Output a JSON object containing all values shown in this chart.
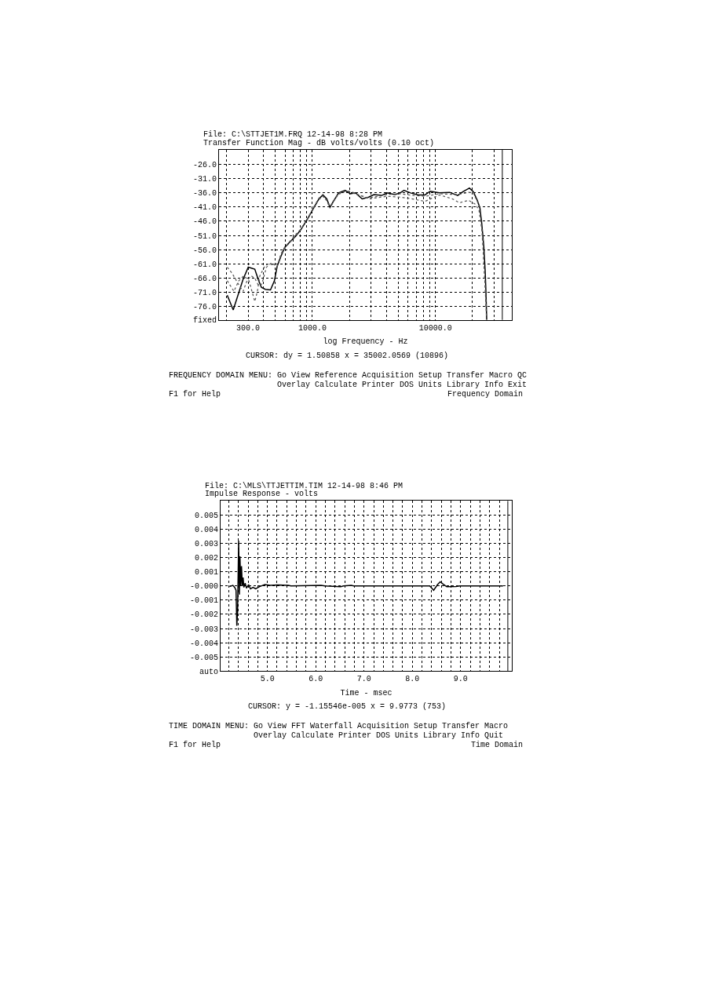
{
  "chart_data": [
    {
      "type": "line",
      "title": "File: C:\\STTJET1M.FRQ 12-14-98 8:28 PM",
      "subtitle": "Transfer Function Mag - dB volts/volts (0.10 oct)",
      "xlabel": "log Frequency - Hz",
      "log": "x",
      "grid": true,
      "xlim": [
        174,
        41800
      ],
      "xticks": [
        {
          "value": 200,
          "label": null
        },
        {
          "value": 300,
          "label": "300.0"
        },
        {
          "value": 400,
          "label": null
        },
        {
          "value": 500,
          "label": null
        },
        {
          "value": 600,
          "label": null
        },
        {
          "value": 700,
          "label": null
        },
        {
          "value": 800,
          "label": null
        },
        {
          "value": 900,
          "label": null
        },
        {
          "value": 1000,
          "label": "1000.0"
        },
        {
          "value": 2000,
          "label": null
        },
        {
          "value": 3000,
          "label": null
        },
        {
          "value": 4000,
          "label": null
        },
        {
          "value": 5000,
          "label": null
        },
        {
          "value": 6000,
          "label": null
        },
        {
          "value": 7000,
          "label": null
        },
        {
          "value": 8000,
          "label": null
        },
        {
          "value": 9000,
          "label": null
        },
        {
          "value": 10000,
          "label": "10000.0"
        },
        {
          "value": 20000,
          "label": null
        },
        {
          "value": 30000,
          "label": null
        }
      ],
      "ylim": [
        -80.8,
        -20.8
      ],
      "yticks": [
        {
          "value": -26,
          "label": "-26.0"
        },
        {
          "value": -31,
          "label": "-31.0"
        },
        {
          "value": -36,
          "label": "-36.0"
        },
        {
          "value": -41,
          "label": "-41.0"
        },
        {
          "value": -46,
          "label": "-46.0"
        },
        {
          "value": -51,
          "label": "-51.0"
        },
        {
          "value": -56,
          "label": "-56.0"
        },
        {
          "value": -61,
          "label": "-61.0"
        },
        {
          "value": -66,
          "label": "-66.0"
        },
        {
          "value": -71,
          "label": "-71.0"
        },
        {
          "value": -76,
          "label": "-76.0"
        },
        {
          "value": -80.8,
          "label": "fixed"
        }
      ],
      "series": [
        {
          "color": "#000000",
          "line_style": "solid",
          "x": [
            203,
            227,
            273,
            301,
            340,
            366,
            385,
            414,
            456,
            491,
            516,
            555,
            598,
            659,
            727,
            802,
            907,
            1025,
            1130,
            1216,
            1309,
            1389,
            1480,
            1632,
            1845,
            2035,
            2244,
            2537,
            2868,
            3162,
            3663,
            4040,
            4679,
            5163,
            5555,
            6281,
            7271,
            8220,
            9067,
            10763,
            13092,
            15165,
            16730,
            18913,
            20347,
            21895,
            23000,
            23810,
            24750,
            25370,
            25740,
            26120
          ],
          "values": [
            -72.1,
            -77.3,
            -66.5,
            -62.2,
            -62.9,
            -67,
            -69.3,
            -70,
            -70.2,
            -67,
            -62,
            -58.3,
            -55.1,
            -53.2,
            -51.4,
            -49.1,
            -45.4,
            -41.3,
            -38.1,
            -36.7,
            -38.1,
            -41.1,
            -39,
            -36,
            -35.1,
            -36.3,
            -36,
            -38.1,
            -37.5,
            -36.6,
            -36.9,
            -36,
            -36.6,
            -36,
            -35.1,
            -36,
            -36.7,
            -36.7,
            -35.4,
            -36,
            -35.8,
            -36.9,
            -35.6,
            -34.3,
            -35.6,
            -38.6,
            -41.3,
            -46.8,
            -55.1,
            -63.3,
            -70.7,
            -80.8
          ]
        },
        {
          "color": "#555555",
          "line_style": "dotted",
          "x": [
            203,
            222,
            252,
            273,
            294,
            317,
            340,
            366,
            388,
            423,
            465,
            516,
            555,
            598,
            659,
            727,
            802,
            907,
            1025,
            1130,
            1216,
            1309,
            1389,
            1480,
            1632,
            1845,
            2035,
            2244,
            2868,
            4040,
            5163,
            6281,
            8220,
            10763,
            13766,
            15680,
            18616,
            21170,
            22620,
            23810,
            24480,
            25220,
            25990
          ],
          "values": [
            -62.2,
            -64.3,
            -68.4,
            -70.7,
            -67,
            -65.2,
            -66.1,
            -68.8,
            -68.1,
            -62.2,
            -60.6,
            -62,
            -57.5,
            -55,
            -53,
            -50.8,
            -48.8,
            -45.2,
            -41.2,
            -38.3,
            -37.2,
            -38.5,
            -40.8,
            -38.8,
            -36.5,
            -35.5,
            -35.4,
            -36.2,
            -38.1,
            -37.2,
            -37.5,
            -38,
            -39,
            -36.7,
            -38.1,
            -39.5,
            -38.6,
            -40,
            -42.2,
            -48.7,
            -56.9,
            -67,
            -79.9
          ]
        },
        {
          "color": "#555555",
          "line_style": "dotted",
          "x": [
            203,
            230,
            252,
            277,
            305,
            340,
            357,
            374,
            414,
            447,
            491,
            533,
            555,
            598,
            659,
            727,
            802,
            907,
            1025,
            1130,
            1216,
            1309,
            1389,
            1480,
            1632,
            1845,
            2035,
            2244,
            2868,
            4040,
            5163,
            6281,
            8220,
            10763,
            15165,
            18616,
            20347,
            22620,
            24180,
            25000,
            25860
          ],
          "values": [
            -67,
            -70.7,
            -67,
            -65.2,
            -67,
            -74.3,
            -70.7,
            -65.2,
            -61.5,
            -61,
            -61.5,
            -60.6,
            -57.8,
            -55.3,
            -53.4,
            -51.2,
            -49,
            -45.3,
            -41,
            -37.8,
            -37,
            -38.8,
            -41.4,
            -39.2,
            -36.2,
            -35.3,
            -35.8,
            -36.4,
            -37.8,
            -36.6,
            -36.3,
            -36.8,
            -37.2,
            -36.3,
            -36.6,
            -35.8,
            -36,
            -40.4,
            -50.5,
            -63.3,
            -76.2
          ]
        }
      ],
      "ref_lines": [
        {
          "axis": "x",
          "value": 35002.0569,
          "color": "#000000",
          "line_style": "solid"
        }
      ],
      "annotations": [
        "CURSOR: dy = 1.50858 x = 35002.0569 (10896)",
        "FREQUENCY DOMAIN MENU:",
        "Go View Reference Acquisition Setup Transfer Macro QC",
        "Overlay Calculate Printer DOS Units Library Info Exit",
        "F1 for Help",
        "Frequency Domain"
      ]
    },
    {
      "type": "line",
      "title": "File: C:\\MLS\\TTJETTIM.TIM 12-14-98 8:46 PM",
      "subtitle": "Impulse Response - volts",
      "xlabel": "Time - msec",
      "grid": true,
      "xlim": [
        4.03,
        10.06
      ],
      "xticks": [
        {
          "value": 4.2,
          "label": null
        },
        {
          "value": 4.4,
          "label": null
        },
        {
          "value": 4.6,
          "label": null
        },
        {
          "value": 4.8,
          "label": null
        },
        {
          "value": 5.0,
          "label": "5.0"
        },
        {
          "value": 5.2,
          "label": null
        },
        {
          "value": 5.4,
          "label": null
        },
        {
          "value": 5.6,
          "label": null
        },
        {
          "value": 5.8,
          "label": null
        },
        {
          "value": 6.0,
          "label": "6.0"
        },
        {
          "value": 6.2,
          "label": null
        },
        {
          "value": 6.4,
          "label": null
        },
        {
          "value": 6.6,
          "label": null
        },
        {
          "value": 6.8,
          "label": null
        },
        {
          "value": 7.0,
          "label": "7.0"
        },
        {
          "value": 7.2,
          "label": null
        },
        {
          "value": 7.4,
          "label": null
        },
        {
          "value": 7.6,
          "label": null
        },
        {
          "value": 7.8,
          "label": null
        },
        {
          "value": 8.0,
          "label": "8.0"
        },
        {
          "value": 8.2,
          "label": null
        },
        {
          "value": 8.4,
          "label": null
        },
        {
          "value": 8.6,
          "label": null
        },
        {
          "value": 8.8,
          "label": null
        },
        {
          "value": 9.0,
          "label": "9.0"
        },
        {
          "value": 9.2,
          "label": null
        },
        {
          "value": 9.4,
          "label": null
        },
        {
          "value": 9.6,
          "label": null
        },
        {
          "value": 9.8,
          "label": null
        }
      ],
      "ylim": [
        -0.006,
        0.006
      ],
      "yticks": [
        0.005,
        0.004,
        0.003,
        0.002,
        0.001,
        {
          "value": 0,
          "label": "-0.000"
        },
        -0.001,
        -0.002,
        -0.003,
        -0.004,
        -0.005,
        {
          "value": -0.006,
          "label": "auto"
        }
      ],
      "series": [
        {
          "color": "#000000",
          "line_style": "solid",
          "x": [
            4.214,
            4.285,
            4.322,
            4.35,
            4.366,
            4.382,
            4.404,
            4.42,
            4.431,
            4.447,
            4.463,
            4.48,
            4.496,
            4.512,
            4.539,
            4.566,
            4.61,
            4.648,
            4.702,
            4.756,
            4.837,
            4.946,
            5.054,
            5.217,
            5.434,
            5.488,
            6.111,
            6.192,
            6.518,
            6.572,
            6.734,
            6.789,
            8.36,
            8.442,
            8.523,
            8.577,
            8.631,
            8.713,
            8.902,
            8.984,
            9.878
          ],
          "values": [
            -4e-05,
            4e-05,
            -0.0001,
            -0.0003,
            -0.0028,
            -0.0018,
            0.0032,
            -0.0006,
            0.0021,
            0.0,
            0.0014,
            0.0,
            0.0006,
            -0.0001,
            0.0002,
            -0.00015,
            0.0001,
            -0.0002,
            -0.0001,
            -0.0002,
            -4e-05,
            0.0001,
            4e-05,
            7e-05,
            4e-05,
            0.0,
            4e-05,
            0.0,
            -5e-05,
            0.0,
            4e-05,
            0.0,
            0.0,
            -0.0003,
            0.0001,
            0.0003,
            0.00015,
            -5e-05,
            -4e-05,
            0.0,
            0.0
          ]
        }
      ],
      "ref_lines": [
        {
          "axis": "x",
          "value": 9.9773,
          "color": "#000000",
          "line_style": "solid"
        }
      ],
      "annotations": [
        "CURSOR: y = -1.15546e-005 x = 9.9773 (753)",
        "TIME DOMAIN MENU:",
        "Go View FFT Waterfall Acquisition Setup Transfer Macro",
        "Overlay Calculate Printer DOS Units Library Info Quit",
        "F1 for Help",
        "Time Domain"
      ]
    }
  ]
}
